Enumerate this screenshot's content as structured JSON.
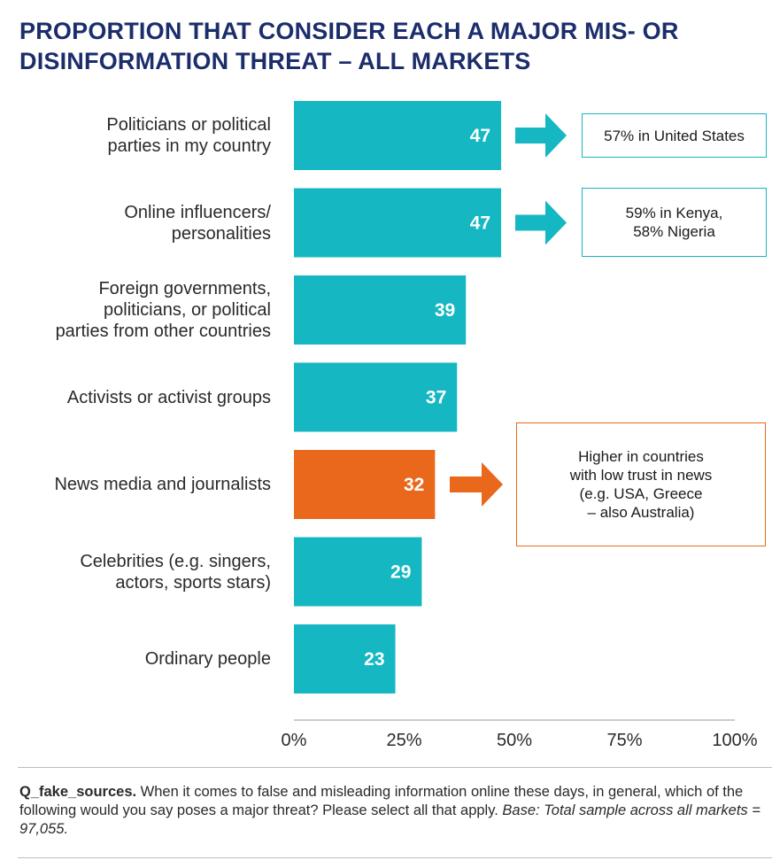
{
  "title": {
    "line1": "PROPORTION THAT CONSIDER EACH A MAJOR MIS- OR",
    "line2": "DISINFORMATION THREAT – ALL MARKETS"
  },
  "colors": {
    "primary": "#14b7c2",
    "highlight": "#e9681c",
    "title": "#1b2d6b"
  },
  "chart_data": {
    "type": "bar",
    "orientation": "horizontal",
    "title": "PROPORTION THAT CONSIDER EACH A MAJOR MIS- OR DISINFORMATION THREAT – ALL MARKETS",
    "categories": [
      [
        "Politicians or political",
        "parties in my country"
      ],
      [
        "Online influencers/",
        "personalities"
      ],
      [
        "Foreign governments,",
        "politicians, or political",
        "parties from other countries"
      ],
      [
        "Activists or activist groups"
      ],
      [
        "News media and journalists"
      ],
      [
        "Celebrities (e.g. singers,",
        "actors, sports stars)"
      ],
      [
        "Ordinary people"
      ]
    ],
    "values": [
      47,
      47,
      39,
      37,
      32,
      29,
      23
    ],
    "data_labels": [
      "47",
      "47",
      "39",
      "37",
      "32",
      "29",
      "23"
    ],
    "highlight_index": 4,
    "xlim": [
      0,
      100
    ],
    "xticks": [
      0,
      25,
      50,
      75,
      100
    ],
    "xtick_labels": [
      "0%",
      "25%",
      "50%",
      "75%",
      "100%"
    ],
    "xlabel": "",
    "ylabel": "",
    "grid": false,
    "annotations": [
      {
        "category_index": 0,
        "lines": [
          "57% in United States"
        ],
        "color": "primary"
      },
      {
        "category_index": 1,
        "lines": [
          "59% in Kenya,",
          "58% Nigeria"
        ],
        "color": "primary"
      },
      {
        "category_index": 4,
        "lines": [
          "Higher in countries",
          "with low trust in news",
          "(e.g. USA, Greece",
          "– also Australia)"
        ],
        "color": "highlight"
      }
    ]
  },
  "footnote": {
    "question_code": "Q_fake_sources.",
    "question_text": " When it comes to false and misleading information online these days, in general, which of the following would you say poses a major threat? Please select all that apply. ",
    "base": "Base: Total sample across all markets = 97,055."
  }
}
